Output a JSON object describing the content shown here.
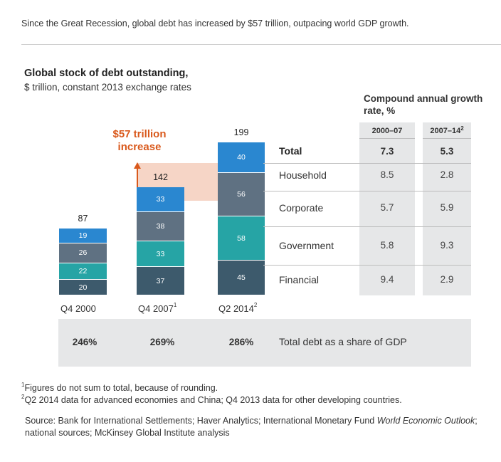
{
  "intro": "Since the Great Recession, global debt has increased by $57 trillion, outpacing world GDP growth.",
  "title": "Global stock of debt outstanding,",
  "subtitle": "$ trillion, constant 2013 exchange rates",
  "increase_label": "$57 trillion increase",
  "growth": {
    "header": "Compound annual growth rate, %",
    "periods": [
      "2000–07",
      "2007–14"
    ],
    "period_notes": [
      "",
      "2"
    ]
  },
  "colors": {
    "Household": "#2a87d0",
    "Corporate": "#5f7182",
    "Government": "#26a4a5",
    "Financial": "#3d5a6c",
    "increase_shade": "#f6d5c6",
    "increase_accent": "#d9591c",
    "panel": "#e6e7e8"
  },
  "chart_data": {
    "type": "bar",
    "stacked": true,
    "categories": [
      "Q4 2000",
      "Q4 2007",
      "Q2 2014"
    ],
    "category_notes": [
      "",
      "1",
      "2"
    ],
    "series": [
      {
        "name": "Financial",
        "values": [
          20,
          37,
          45
        ]
      },
      {
        "name": "Government",
        "values": [
          22,
          33,
          58
        ]
      },
      {
        "name": "Corporate",
        "values": [
          26,
          38,
          56
        ]
      },
      {
        "name": "Household",
        "values": [
          19,
          33,
          40
        ]
      }
    ],
    "totals": [
      87,
      142,
      199
    ],
    "total_label": "Total",
    "growth_rates": {
      "Total": [
        "7.3",
        "5.3"
      ],
      "Household": [
        "8.5",
        "2.8"
      ],
      "Corporate": [
        "5.7",
        "5.9"
      ],
      "Government": [
        "5.8",
        "9.3"
      ],
      "Financial": [
        "9.4",
        "2.9"
      ]
    },
    "debt_to_gdp": [
      "246%",
      "269%",
      "286%"
    ],
    "debt_to_gdp_label": "Total debt as a share of GDP"
  },
  "footnotes": [
    {
      "mark": "1",
      "text": "Figures do not sum to total, because of rounding."
    },
    {
      "mark": "2",
      "text": "Q2 2014 data for advanced economies and China; Q4 2013 data for other developing countries."
    }
  ],
  "source_prefix": "Source: Bank for International Settlements; Haver Analytics; International Monetary Fund ",
  "source_italic": "World Economic Outlook",
  "source_suffix": "; national sources; McKinsey Global Institute analysis"
}
